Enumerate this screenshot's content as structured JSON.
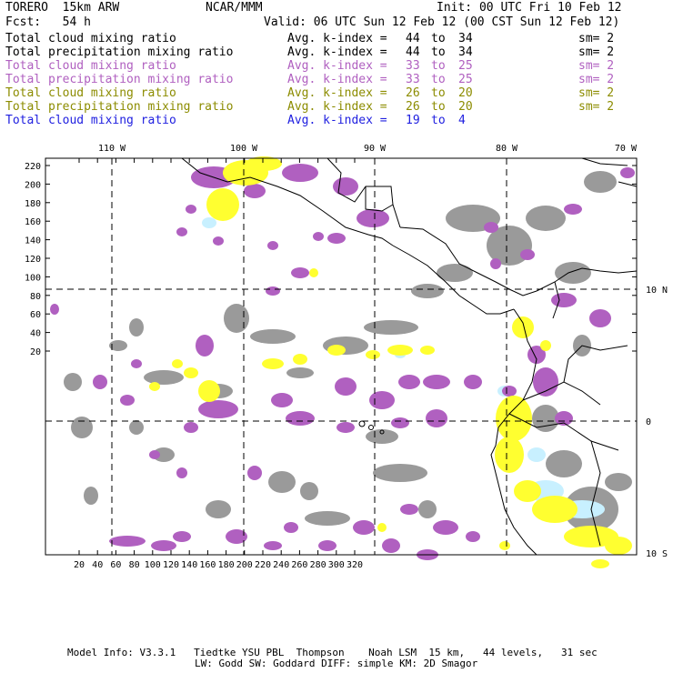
{
  "header": {
    "model": "TORERO  15km ARW",
    "org": "NCAR/MMM",
    "init": "Init: 00 UTC Fri 10 Feb 12",
    "fcst": "Fcst:   54 h",
    "valid": "Valid: 06 UTC Sun 12 Feb 12 (00 CST Sun 12 Feb 12)"
  },
  "legend": [
    {
      "name": "Total cloud mixing ratio",
      "kidx": "Avg. k-index =",
      "from": "44",
      "to_word": "to",
      "to": "34",
      "sm": "sm= 2",
      "color": "#000000"
    },
    {
      "name": "Total precipitation mixing ratio",
      "kidx": "Avg. k-index =",
      "from": "44",
      "to_word": "to",
      "to": "34",
      "sm": "sm= 2",
      "color": "#000000"
    },
    {
      "name": "Total cloud mixing ratio",
      "kidx": "Avg. k-index =",
      "from": "33",
      "to_word": "to",
      "to": "25",
      "sm": "sm= 2",
      "color": "#b060c0"
    },
    {
      "name": "Total precipitation mixing ratio",
      "kidx": "Avg. k-index =",
      "from": "33",
      "to_word": "to",
      "to": "25",
      "sm": "sm= 2",
      "color": "#b060c0"
    },
    {
      "name": "Total cloud mixing ratio",
      "kidx": "Avg. k-index =",
      "from": "26",
      "to_word": "to",
      "to": "20",
      "sm": "sm= 2",
      "color": "#8c8c00"
    },
    {
      "name": "Total precipitation mixing ratio",
      "kidx": "Avg. k-index =",
      "from": "26",
      "to_word": "to",
      "to": "20",
      "sm": "sm= 2",
      "color": "#8c8c00"
    },
    {
      "name": "Total cloud mixing ratio",
      "kidx": "Avg. k-index =",
      "from": "19",
      "to_word": "to",
      "to": "4",
      "sm": "",
      "color": "#2020e0"
    }
  ],
  "map": {
    "top_lon_labels": [
      "110 W",
      "100 W",
      "90 W",
      "80 W",
      "70 W"
    ],
    "right_lat_labels": [
      "10 N",
      "0",
      "10 S"
    ],
    "y_ticks": [
      "220",
      "200",
      "180",
      "160",
      "140",
      "120",
      "100",
      "80",
      "60",
      "40",
      "20"
    ],
    "x_ticks": [
      "20",
      "40",
      "60",
      "80",
      "100",
      "120",
      "140",
      "160",
      "180",
      "200",
      "220",
      "240",
      "260",
      "280",
      "300",
      "320"
    ],
    "colors": {
      "gray": "#9a9a9a",
      "purple": "#b060c0",
      "yellow": "#ffff30",
      "cyan": "#c8f0ff",
      "coast": "#000000",
      "grid": "#000000"
    }
  },
  "footer": {
    "line1": "Model Info: V3.3.1   Tiedtke YSU PBL  Thompson    Noah LSM  15 km,   44 levels,   31 sec",
    "line2": "LW: Godd SW: Goddard DIFF: simple KM: 2D Smagor"
  }
}
